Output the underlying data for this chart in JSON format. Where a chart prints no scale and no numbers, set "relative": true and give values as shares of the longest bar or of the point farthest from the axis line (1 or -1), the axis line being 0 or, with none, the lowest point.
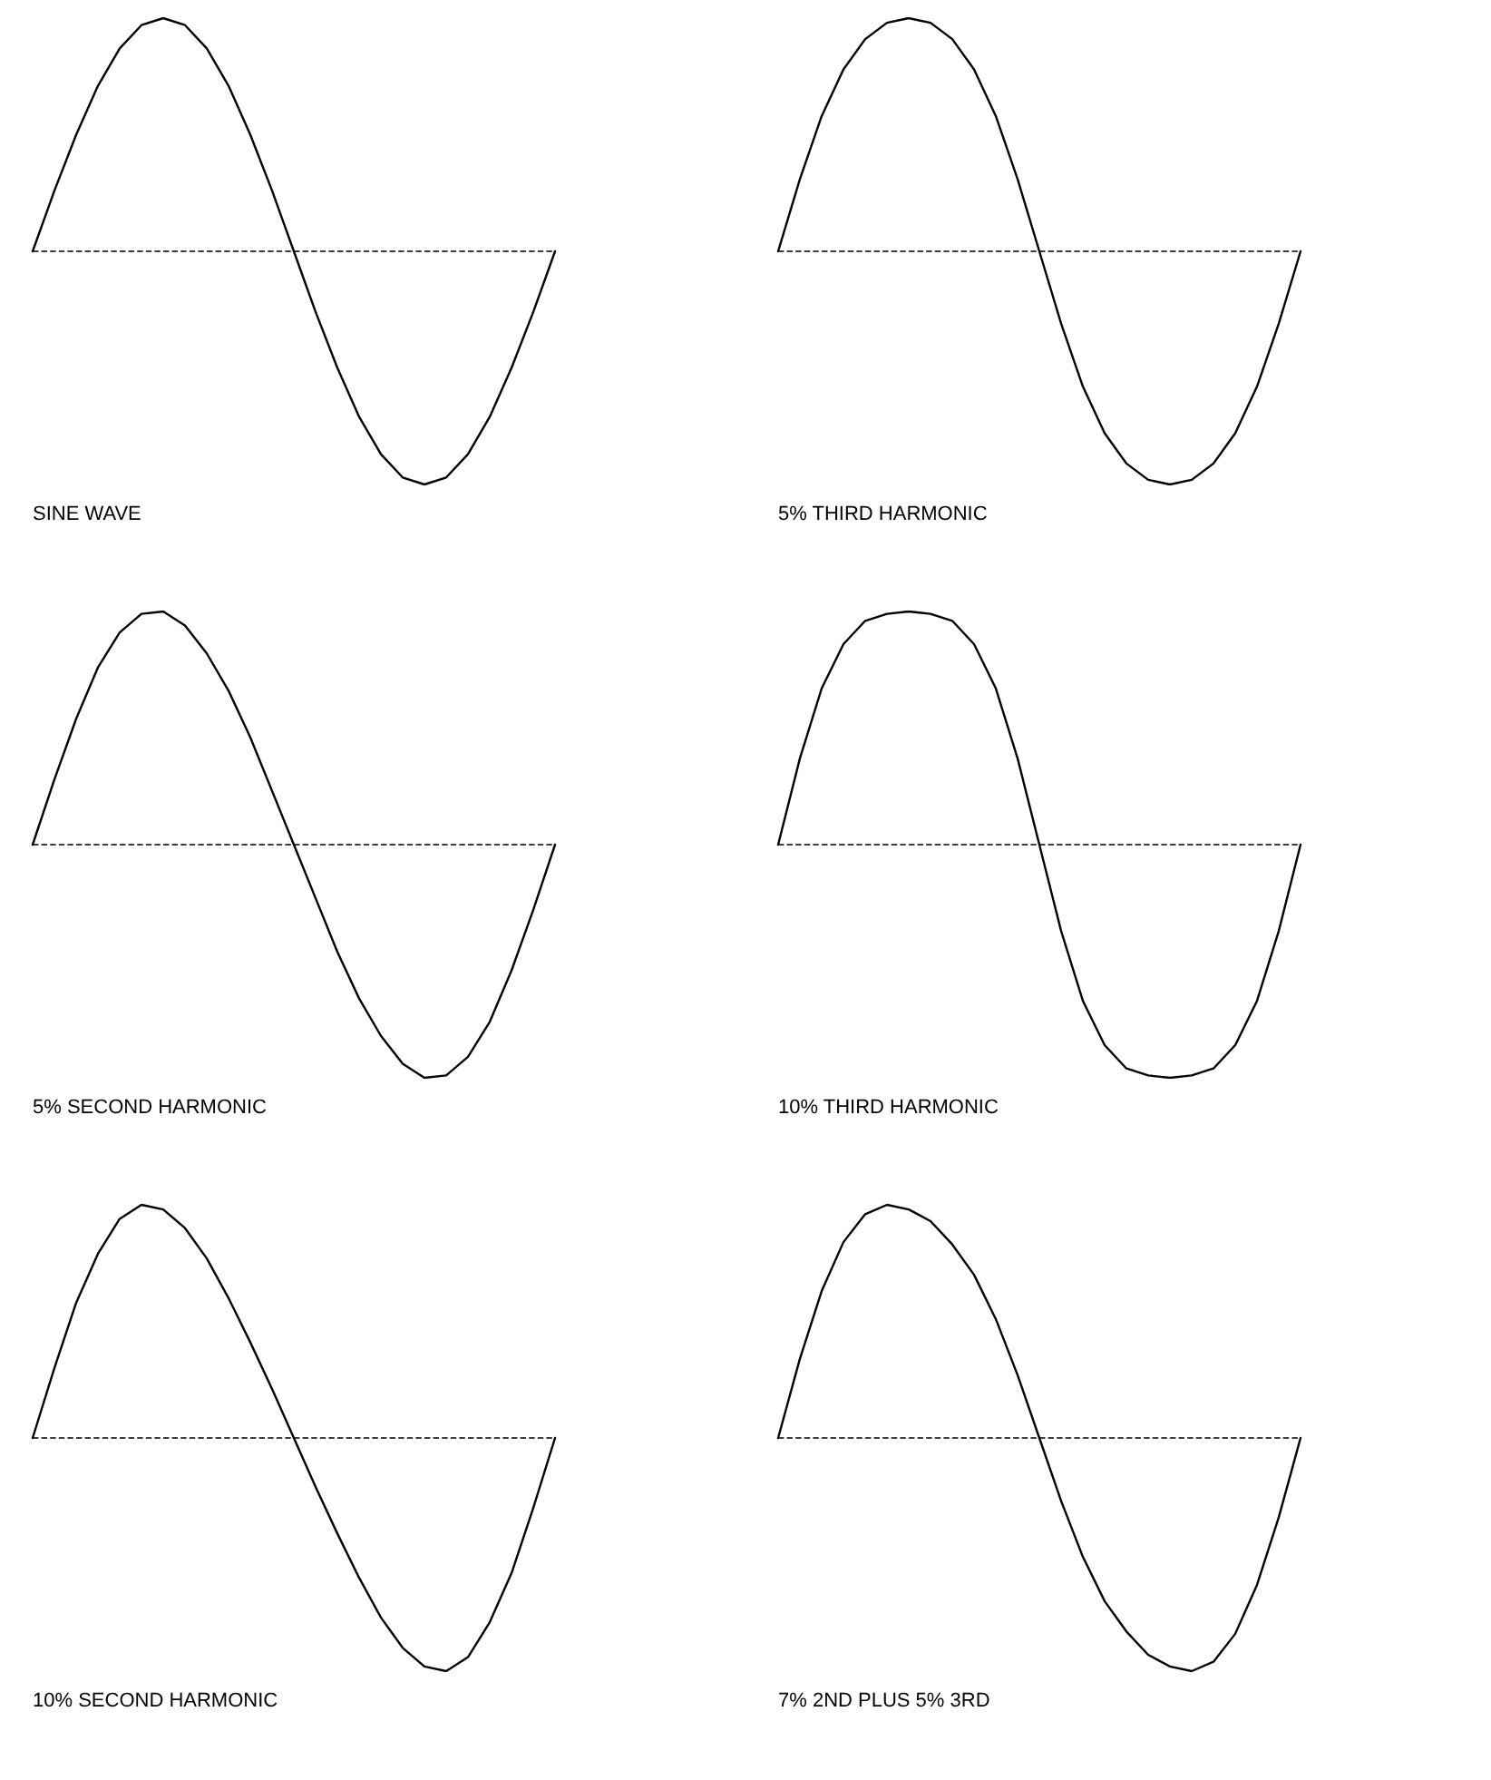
{
  "chart_data": [
    {
      "type": "line",
      "relative": true,
      "marker": "none",
      "line_style": "solid",
      "categories": [
        null,
        null,
        null,
        null,
        null,
        null,
        null,
        null,
        null,
        null,
        null,
        null,
        null,
        null,
        null,
        null,
        null,
        null,
        null,
        null,
        null,
        null,
        null,
        null,
        null
      ],
      "series": [
        {
          "color": "#000000",
          "values": [
            0,
            0.26,
            0.5,
            0.71,
            0.87,
            0.97,
            1,
            0.97,
            0.87,
            0.71,
            0.5,
            0.26,
            0,
            -0.26,
            -0.5,
            -0.71,
            -0.87,
            -0.97,
            -1,
            -0.97,
            -0.87,
            -0.71,
            -0.5,
            -0.26,
            0
          ]
        }
      ],
      "ref_lines": [
        {
          "axis": "y",
          "value": 0,
          "line_style": "dashed"
        }
      ],
      "annotations": [
        "SINE WAVE"
      ]
    },
    {
      "type": "line",
      "relative": true,
      "marker": "none",
      "line_style": "solid",
      "categories": [
        null,
        null,
        null,
        null,
        null,
        null,
        null,
        null,
        null,
        null,
        null,
        null,
        null,
        null,
        null,
        null,
        null,
        null,
        null,
        null,
        null,
        null,
        null,
        null,
        null
      ],
      "series": [
        {
          "color": "#000000",
          "values": [
            0,
            0.31,
            0.58,
            0.78,
            0.91,
            0.98,
            1,
            0.98,
            0.91,
            0.78,
            0.58,
            0.31,
            0,
            -0.31,
            -0.58,
            -0.78,
            -0.91,
            -0.98,
            -1,
            -0.98,
            -0.91,
            -0.78,
            -0.58,
            -0.31,
            0
          ]
        }
      ],
      "ref_lines": [
        {
          "axis": "y",
          "value": 0,
          "line_style": "dashed"
        }
      ],
      "annotations": [
        "5% THIRD HARMONIC"
      ]
    },
    {
      "type": "line",
      "relative": true,
      "marker": "none",
      "line_style": "solid",
      "categories": [
        null,
        null,
        null,
        null,
        null,
        null,
        null,
        null,
        null,
        null,
        null,
        null,
        null,
        null,
        null,
        null,
        null,
        null,
        null,
        null,
        null,
        null,
        null,
        null,
        null
      ],
      "series": [
        {
          "color": "#000000",
          "values": [
            0,
            0.28,
            0.54,
            0.76,
            0.91,
            0.99,
            1,
            0.94,
            0.82,
            0.66,
            0.46,
            0.23,
            0,
            -0.23,
            -0.46,
            -0.66,
            -0.82,
            -0.94,
            -1,
            -0.99,
            -0.91,
            -0.76,
            -0.54,
            -0.28,
            0
          ]
        }
      ],
      "ref_lines": [
        {
          "axis": "y",
          "value": 0,
          "line_style": "dashed"
        }
      ],
      "annotations": [
        "5% SECOND HARMONIC"
      ]
    },
    {
      "type": "line",
      "relative": true,
      "marker": "none",
      "line_style": "solid",
      "categories": [
        null,
        null,
        null,
        null,
        null,
        null,
        null,
        null,
        null,
        null,
        null,
        null,
        null,
        null,
        null,
        null,
        null,
        null,
        null,
        null,
        null,
        null,
        null,
        null,
        null
      ],
      "series": [
        {
          "color": "#000000",
          "values": [
            0,
            0.37,
            0.67,
            0.86,
            0.96,
            0.99,
            1,
            0.99,
            0.96,
            0.86,
            0.67,
            0.37,
            0,
            -0.37,
            -0.67,
            -0.86,
            -0.96,
            -0.99,
            -1,
            -0.99,
            -0.96,
            -0.86,
            -0.67,
            -0.37,
            0
          ]
        }
      ],
      "ref_lines": [
        {
          "axis": "y",
          "value": 0,
          "line_style": "dashed"
        }
      ],
      "annotations": [
        "10% THIRD HARMONIC"
      ]
    },
    {
      "type": "line",
      "relative": true,
      "marker": "none",
      "line_style": "solid",
      "categories": [
        null,
        null,
        null,
        null,
        null,
        null,
        null,
        null,
        null,
        null,
        null,
        null,
        null,
        null,
        null,
        null,
        null,
        null,
        null,
        null,
        null,
        null,
        null,
        null,
        null
      ],
      "series": [
        {
          "color": "#000000",
          "values": [
            0,
            0.3,
            0.58,
            0.79,
            0.94,
            1,
            0.98,
            0.9,
            0.77,
            0.6,
            0.41,
            0.21,
            0,
            -0.21,
            -0.41,
            -0.6,
            -0.77,
            -0.9,
            -0.98,
            -1,
            -0.94,
            -0.79,
            -0.58,
            -0.3,
            0
          ]
        }
      ],
      "ref_lines": [
        {
          "axis": "y",
          "value": 0,
          "line_style": "dashed"
        }
      ],
      "annotations": [
        "10% SECOND HARMONIC"
      ]
    },
    {
      "type": "line",
      "relative": true,
      "marker": "none",
      "line_style": "solid",
      "categories": [
        null,
        null,
        null,
        null,
        null,
        null,
        null,
        null,
        null,
        null,
        null,
        null,
        null,
        null,
        null,
        null,
        null,
        null,
        null,
        null,
        null,
        null,
        null,
        null,
        null
      ],
      "series": [
        {
          "color": "#000000",
          "values": [
            0,
            0.34,
            0.63,
            0.84,
            0.96,
            1,
            0.98,
            0.93,
            0.83,
            0.7,
            0.51,
            0.27,
            0,
            -0.27,
            -0.51,
            -0.7,
            -0.83,
            -0.93,
            -0.98,
            -1,
            -0.96,
            -0.84,
            -0.63,
            -0.34,
            0
          ]
        }
      ],
      "ref_lines": [
        {
          "axis": "y",
          "value": 0,
          "line_style": "dashed"
        }
      ],
      "annotations": [
        "7% 2ND PLUS 5% 3RD"
      ]
    }
  ]
}
